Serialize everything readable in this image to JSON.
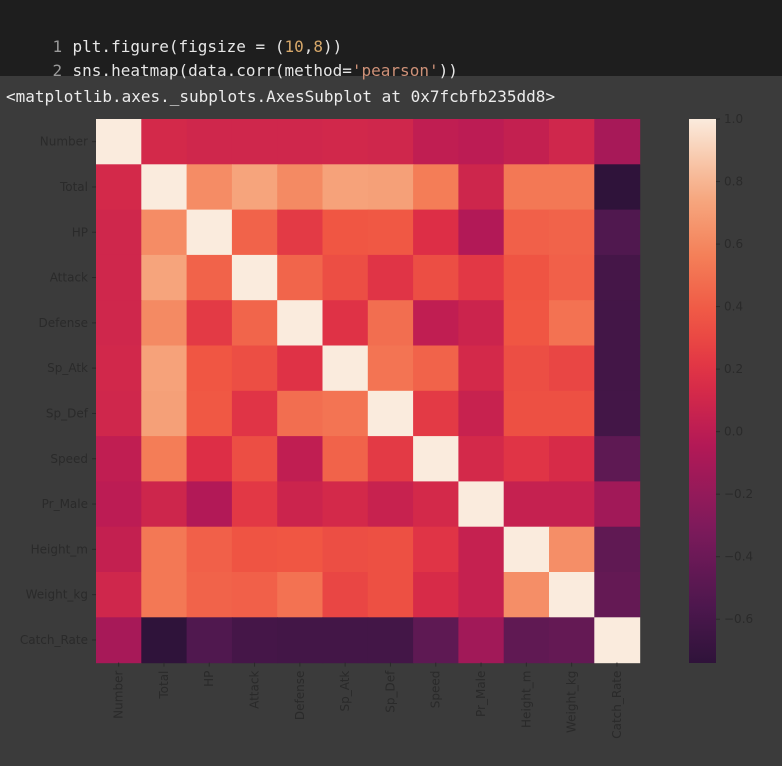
{
  "code": {
    "lines": [
      {
        "num": "1",
        "text": "plt.figure(figsize = (10,8))"
      },
      {
        "num": "2",
        "text": "sns.heatmap(data.corr(method='pearson'))"
      }
    ]
  },
  "output": {
    "repr": "<matplotlib.axes._subplots.AxesSubplot at 0x7fcbfb235dd8>"
  },
  "colors": {
    "code_bg": "#1e1e1e",
    "page_bg": "#3b3b3b",
    "colormap": "rocket"
  },
  "chart_data": {
    "type": "heatmap",
    "x_labels": [
      "Number",
      "Total",
      "HP",
      "Attack",
      "Defense",
      "Sp_Atk",
      "Sp_Def",
      "Speed",
      "Pr_Male",
      "Height_m",
      "Weight_kg",
      "Catch_Rate"
    ],
    "y_labels": [
      "Number",
      "Total",
      "HP",
      "Attack",
      "Defense",
      "Sp_Atk",
      "Sp_Def",
      "Speed",
      "Pr_Male",
      "Height_m",
      "Weight_kg",
      "Catch_Rate"
    ],
    "values": [
      [
        1.0,
        0.12,
        0.1,
        0.1,
        0.1,
        0.11,
        0.1,
        0.02,
        0.0,
        0.04,
        0.1,
        -0.1
      ],
      [
        0.12,
        1.0,
        0.62,
        0.73,
        0.61,
        0.72,
        0.71,
        0.55,
        0.09,
        0.53,
        0.53,
        -0.74
      ],
      [
        0.1,
        0.62,
        1.0,
        0.43,
        0.23,
        0.37,
        0.38,
        0.17,
        -0.05,
        0.42,
        0.43,
        -0.54
      ],
      [
        0.1,
        0.73,
        0.43,
        1.0,
        0.44,
        0.33,
        0.2,
        0.33,
        0.22,
        0.36,
        0.42,
        -0.61
      ],
      [
        0.1,
        0.61,
        0.23,
        0.44,
        1.0,
        0.19,
        0.48,
        0.02,
        0.08,
        0.37,
        0.5,
        -0.62
      ],
      [
        0.11,
        0.72,
        0.37,
        0.33,
        0.19,
        1.0,
        0.51,
        0.43,
        0.12,
        0.33,
        0.29,
        -0.62
      ],
      [
        0.1,
        0.71,
        0.38,
        0.2,
        0.48,
        0.51,
        1.0,
        0.23,
        0.06,
        0.34,
        0.34,
        -0.62
      ],
      [
        0.02,
        0.55,
        0.17,
        0.33,
        0.02,
        0.43,
        0.23,
        1.0,
        0.12,
        0.2,
        0.14,
        -0.47
      ],
      [
        0.0,
        0.09,
        -0.05,
        0.22,
        0.08,
        0.12,
        0.06,
        0.12,
        1.0,
        0.05,
        0.05,
        -0.13
      ],
      [
        0.04,
        0.53,
        0.42,
        0.36,
        0.37,
        0.33,
        0.34,
        0.2,
        0.05,
        1.0,
        0.63,
        -0.46
      ],
      [
        0.1,
        0.53,
        0.43,
        0.42,
        0.5,
        0.29,
        0.34,
        0.14,
        0.05,
        0.63,
        1.0,
        -0.44
      ],
      [
        -0.1,
        -0.74,
        -0.54,
        -0.61,
        -0.62,
        -0.62,
        -0.62,
        -0.47,
        -0.13,
        -0.46,
        -0.44,
        1.0
      ]
    ],
    "vmin": -0.74,
    "vmax": 1.0,
    "colorbar_ticks": [
      1.0,
      0.8,
      0.6,
      0.4,
      0.2,
      0.0,
      -0.2,
      -0.4,
      -0.6
    ],
    "colorbar_tick_labels": [
      "1.0",
      "0.8",
      "0.6",
      "0.4",
      "0.2",
      "0.0",
      "−0.2",
      "−0.4",
      "−0.6"
    ],
    "grid": false
  }
}
